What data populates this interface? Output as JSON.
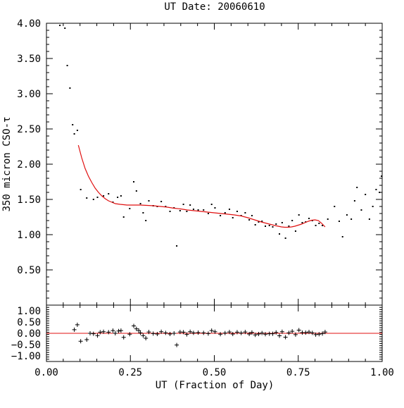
{
  "chart_data": [
    {
      "type": "scatter",
      "title": "UT Date: 20060610",
      "ylabel": "350 micron CSO-τ",
      "xlabel": "",
      "xlim": [
        0.0,
        1.0
      ],
      "ylim": [
        0.0,
        4.0
      ],
      "yticks": [
        "0.50",
        "1.00",
        "1.50",
        "2.00",
        "2.50",
        "3.00",
        "3.50",
        "4.00"
      ],
      "grid": false,
      "series": [
        {
          "name": "",
          "marker": "dot",
          "color": "#000000",
          "points": [
            [
              0.04,
              3.97
            ],
            [
              0.055,
              3.93
            ],
            [
              0.062,
              3.4
            ],
            [
              0.07,
              3.08
            ],
            [
              0.078,
              2.56
            ],
            [
              0.083,
              2.43
            ],
            [
              0.092,
              2.48
            ],
            [
              0.102,
              1.64
            ],
            [
              0.12,
              1.52
            ],
            [
              0.14,
              1.5
            ],
            [
              0.152,
              1.53
            ],
            [
              0.17,
              1.55
            ],
            [
              0.185,
              1.58
            ],
            [
              0.198,
              1.46
            ],
            [
              0.212,
              1.53
            ],
            [
              0.222,
              1.55
            ],
            [
              0.23,
              1.25
            ],
            [
              0.248,
              1.37
            ],
            [
              0.26,
              1.75
            ],
            [
              0.268,
              1.62
            ],
            [
              0.28,
              1.44
            ],
            [
              0.288,
              1.31
            ],
            [
              0.296,
              1.2
            ],
            [
              0.305,
              1.48
            ],
            [
              0.318,
              1.41
            ],
            [
              0.33,
              1.4
            ],
            [
              0.342,
              1.47
            ],
            [
              0.355,
              1.4
            ],
            [
              0.368,
              1.33
            ],
            [
              0.38,
              1.38
            ],
            [
              0.388,
              0.84
            ],
            [
              0.398,
              1.34
            ],
            [
              0.408,
              1.43
            ],
            [
              0.418,
              1.33
            ],
            [
              0.428,
              1.42
            ],
            [
              0.438,
              1.36
            ],
            [
              0.452,
              1.35
            ],
            [
              0.468,
              1.35
            ],
            [
              0.482,
              1.3
            ],
            [
              0.492,
              1.43
            ],
            [
              0.502,
              1.38
            ],
            [
              0.518,
              1.27
            ],
            [
              0.532,
              1.31
            ],
            [
              0.545,
              1.36
            ],
            [
              0.555,
              1.24
            ],
            [
              0.568,
              1.33
            ],
            [
              0.58,
              1.27
            ],
            [
              0.592,
              1.31
            ],
            [
              0.604,
              1.21
            ],
            [
              0.612,
              1.27
            ],
            [
              0.622,
              1.14
            ],
            [
              0.632,
              1.18
            ],
            [
              0.642,
              1.19
            ],
            [
              0.652,
              1.12
            ],
            [
              0.664,
              1.13
            ],
            [
              0.674,
              1.11
            ],
            [
              0.684,
              1.15
            ],
            [
              0.694,
              1.01
            ],
            [
              0.702,
              1.17
            ],
            [
              0.712,
              0.95
            ],
            [
              0.722,
              1.12
            ],
            [
              0.732,
              1.2
            ],
            [
              0.742,
              1.05
            ],
            [
              0.752,
              1.28
            ],
            [
              0.762,
              1.17
            ],
            [
              0.772,
              1.18
            ],
            [
              0.782,
              1.23
            ],
            [
              0.792,
              1.2
            ],
            [
              0.802,
              1.13
            ],
            [
              0.812,
              1.16
            ],
            [
              0.822,
              1.13
            ],
            [
              0.838,
              1.22
            ],
            [
              0.858,
              1.4
            ],
            [
              0.872,
              1.19
            ],
            [
              0.882,
              0.97
            ],
            [
              0.895,
              1.28
            ],
            [
              0.908,
              1.22
            ],
            [
              0.918,
              1.48
            ],
            [
              0.925,
              1.67
            ],
            [
              0.938,
              1.35
            ],
            [
              0.95,
              1.57
            ],
            [
              0.962,
              1.22
            ],
            [
              0.972,
              1.4
            ],
            [
              0.982,
              1.64
            ],
            [
              0.992,
              1.6
            ],
            [
              0.998,
              1.83
            ]
          ]
        },
        {
          "name": "",
          "type": "line",
          "color": "#e01010",
          "x": [
            0.095,
            0.105,
            0.115,
            0.125,
            0.135,
            0.145,
            0.155,
            0.165,
            0.175,
            0.185,
            0.195,
            0.205,
            0.22,
            0.24,
            0.26,
            0.28,
            0.3,
            0.32,
            0.34,
            0.36,
            0.38,
            0.4,
            0.42,
            0.44,
            0.46,
            0.48,
            0.5,
            0.52,
            0.54,
            0.56,
            0.58,
            0.6,
            0.62,
            0.64,
            0.66,
            0.68,
            0.7,
            0.71,
            0.72,
            0.73,
            0.74,
            0.75,
            0.76,
            0.77,
            0.78,
            0.79,
            0.8,
            0.81,
            0.82,
            0.83
          ],
          "values": [
            2.27,
            2.09,
            1.94,
            1.83,
            1.74,
            1.66,
            1.6,
            1.55,
            1.51,
            1.48,
            1.46,
            1.44,
            1.43,
            1.42,
            1.42,
            1.42,
            1.415,
            1.41,
            1.4,
            1.39,
            1.375,
            1.365,
            1.35,
            1.34,
            1.33,
            1.32,
            1.31,
            1.3,
            1.29,
            1.28,
            1.265,
            1.24,
            1.21,
            1.18,
            1.155,
            1.13,
            1.11,
            1.105,
            1.105,
            1.11,
            1.12,
            1.135,
            1.15,
            1.17,
            1.19,
            1.205,
            1.21,
            1.2,
            1.16,
            1.11
          ]
        }
      ]
    },
    {
      "type": "scatter",
      "title": "",
      "ylabel": "",
      "xlabel": "UT (Fraction of Day)",
      "xlim": [
        0.0,
        1.0
      ],
      "ylim": [
        -1.25,
        1.25
      ],
      "xticks": [
        "0.00",
        "0.25",
        "0.50",
        "0.75",
        "1.00"
      ],
      "yticks": [
        "−1.00",
        "−0.50",
        "0.00",
        "0.50",
        "1.00"
      ],
      "reference_line": {
        "y": 0.0,
        "color": "#e01010"
      },
      "series": [
        {
          "name": "",
          "marker": "plus",
          "color": "#000000",
          "points": [
            [
              0.083,
              0.16
            ],
            [
              0.092,
              0.38
            ],
            [
              0.102,
              -0.35
            ],
            [
              0.12,
              -0.28
            ],
            [
              0.13,
              0.0
            ],
            [
              0.14,
              -0.02
            ],
            [
              0.152,
              -0.1
            ],
            [
              0.16,
              0.05
            ],
            [
              0.17,
              0.07
            ],
            [
              0.185,
              0.05
            ],
            [
              0.198,
              0.12
            ],
            [
              0.205,
              0.0
            ],
            [
              0.215,
              0.1
            ],
            [
              0.222,
              0.12
            ],
            [
              0.23,
              -0.18
            ],
            [
              0.248,
              -0.04
            ],
            [
              0.26,
              0.33
            ],
            [
              0.268,
              0.2
            ],
            [
              0.275,
              0.12
            ],
            [
              0.28,
              0.02
            ],
            [
              0.288,
              -0.1
            ],
            [
              0.296,
              -0.22
            ],
            [
              0.305,
              0.06
            ],
            [
              0.318,
              -0.01
            ],
            [
              0.33,
              -0.03
            ],
            [
              0.342,
              0.07
            ],
            [
              0.355,
              0.02
            ],
            [
              0.368,
              -0.03
            ],
            [
              0.38,
              0.0
            ],
            [
              0.388,
              -0.52
            ],
            [
              0.398,
              0.06
            ],
            [
              0.408,
              0.05
            ],
            [
              0.418,
              -0.05
            ],
            [
              0.428,
              0.07
            ],
            [
              0.438,
              0.02
            ],
            [
              0.452,
              0.03
            ],
            [
              0.468,
              0.02
            ],
            [
              0.482,
              -0.01
            ],
            [
              0.492,
              0.12
            ],
            [
              0.502,
              0.07
            ],
            [
              0.518,
              -0.04
            ],
            [
              0.532,
              0.01
            ],
            [
              0.545,
              0.06
            ],
            [
              0.555,
              -0.03
            ],
            [
              0.568,
              0.05
            ],
            [
              0.58,
              0.01
            ],
            [
              0.592,
              0.06
            ],
            [
              0.604,
              -0.03
            ],
            [
              0.612,
              0.04
            ],
            [
              0.622,
              -0.07
            ],
            [
              0.632,
              -0.03
            ],
            [
              0.642,
              0.01
            ],
            [
              0.652,
              -0.04
            ],
            [
              0.664,
              -0.02
            ],
            [
              0.674,
              -0.02
            ],
            [
              0.684,
              0.04
            ],
            [
              0.694,
              -0.11
            ],
            [
              0.702,
              0.07
            ],
            [
              0.712,
              -0.17
            ],
            [
              0.722,
              0.02
            ],
            [
              0.732,
              0.09
            ],
            [
              0.742,
              -0.06
            ],
            [
              0.752,
              0.14
            ],
            [
              0.762,
              0.03
            ],
            [
              0.772,
              0.03
            ],
            [
              0.782,
              0.06
            ],
            [
              0.792,
              0.02
            ],
            [
              0.802,
              -0.06
            ],
            [
              0.812,
              -0.04
            ],
            [
              0.822,
              -0.01
            ],
            [
              0.83,
              0.06
            ]
          ]
        }
      ]
    }
  ]
}
